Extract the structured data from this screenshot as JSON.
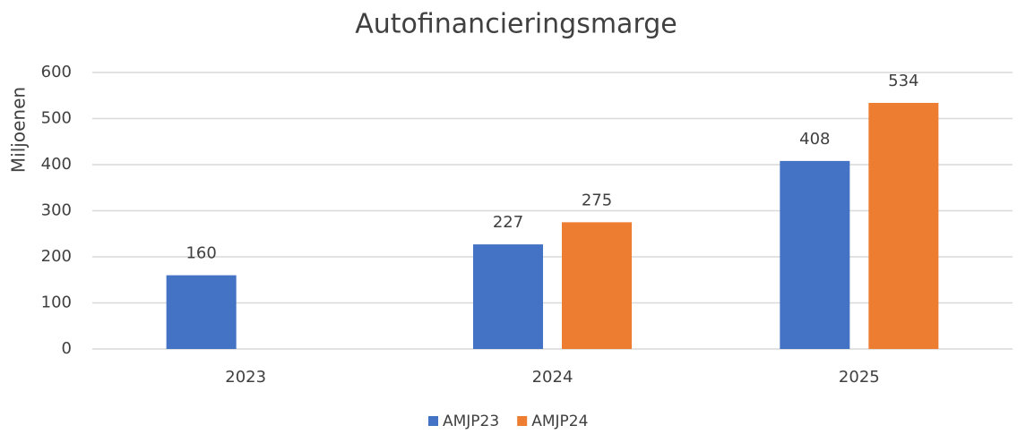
{
  "chart_data": {
    "type": "bar",
    "title": "Autofinancieringsmarge",
    "y_label": "Miljoenen",
    "categories": [
      "2023",
      "2024",
      "2025"
    ],
    "series": [
      {
        "name": "AMJP23",
        "color": "#4472c4",
        "values": [
          160,
          227,
          408
        ]
      },
      {
        "name": "AMJP24",
        "color": "#ed7d31",
        "values": [
          null,
          275,
          534
        ]
      }
    ],
    "ylim": [
      0,
      600
    ],
    "yticks": [
      0,
      100,
      200,
      300,
      400,
      500,
      600
    ],
    "grid": true,
    "legend": "bottom"
  }
}
